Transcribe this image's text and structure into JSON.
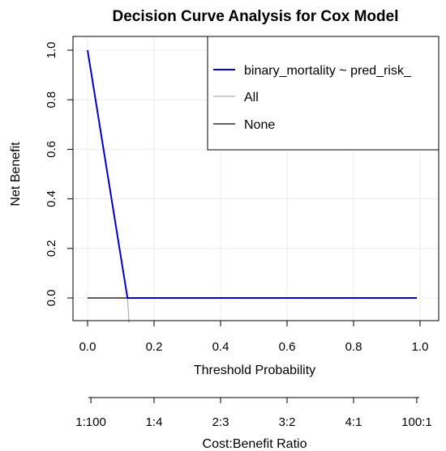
{
  "chart_data": {
    "type": "line",
    "title": "Decision Curve Analysis for Cox Model",
    "xlabel": "Threshold Probability",
    "ylabel": "Net Benefit",
    "xlim": [
      0,
      1
    ],
    "ylim": [
      -0.1,
      1.0
    ],
    "x_ticks": [
      "0.0",
      "0.2",
      "0.4",
      "0.6",
      "0.8",
      "1.0"
    ],
    "y_ticks": [
      "0.0",
      "0.2",
      "0.4",
      "0.6",
      "0.8",
      "1.0"
    ],
    "grid": true,
    "legend_position": "top-right",
    "secondary_axis": {
      "label": "Cost:Benefit Ratio",
      "ticks": [
        {
          "label": "1:100",
          "x": 0.0099
        },
        {
          "label": "1:4",
          "x": 0.2
        },
        {
          "label": "2:3",
          "x": 0.4
        },
        {
          "label": "3:2",
          "x": 0.6
        },
        {
          "label": "4:1",
          "x": 0.8
        },
        {
          "label": "100:1",
          "x": 0.9901
        }
      ]
    },
    "series": [
      {
        "name": "binary_mortality ~ pred_risk_",
        "color": "#0000cc",
        "x": [
          0.0,
          0.12,
          0.99
        ],
        "y": [
          1.0,
          0.0,
          0.0
        ]
      },
      {
        "name": "All",
        "color": "#b0b0b0",
        "x": [
          0.0,
          0.12,
          0.125
        ],
        "y": [
          1.0,
          0.0,
          -0.1
        ]
      },
      {
        "name": "None",
        "color": "#000000",
        "x": [
          0.0,
          0.99
        ],
        "y": [
          0.0,
          0.0
        ]
      }
    ]
  }
}
